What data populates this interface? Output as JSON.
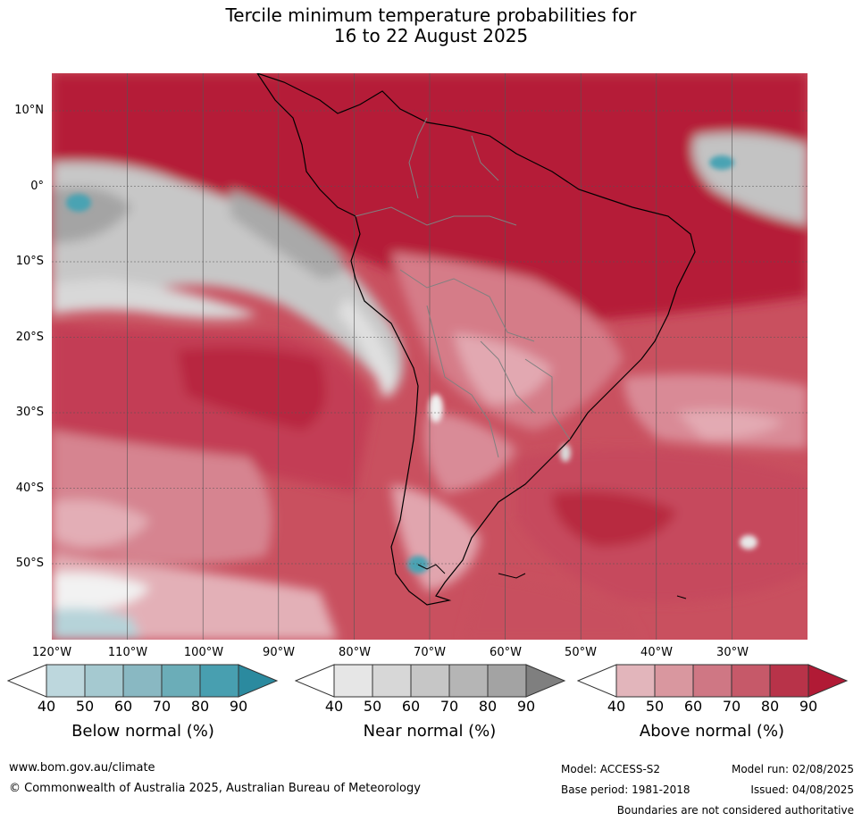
{
  "title_line1": "Tercile minimum temperature probabilities for",
  "title_line2": "16 to 22 August 2025",
  "map": {
    "region": "South America",
    "lat_labels": [
      "10°N",
      "0°",
      "10°S",
      "20°S",
      "30°S",
      "40°S",
      "50°S"
    ],
    "lon_labels": [
      "120°W",
      "110°W",
      "100°W",
      "90°W",
      "80°W",
      "70°W",
      "60°W",
      "50°W",
      "40°W",
      "30°W"
    ],
    "lon_range": [
      -122,
      -22
    ],
    "lat_range": [
      -60,
      15
    ],
    "ocean_colors": [
      "#b51a38",
      "#c43e55",
      "#d67a88",
      "#e2a9b2",
      "#a6a6a6",
      "#d6d6d6",
      "#b2d2d8"
    ]
  },
  "legend": {
    "tick_labels": [
      "40",
      "50",
      "60",
      "70",
      "80",
      "90"
    ],
    "below": {
      "title": "Below normal (%)",
      "colors": [
        "#bdd7dd",
        "#a5c9d0",
        "#89b8c2",
        "#6badb8",
        "#489fb0",
        "#2b8a9f"
      ]
    },
    "near": {
      "title": "Near normal (%)",
      "colors": [
        "#e6e6e6",
        "#d7d7d7",
        "#c6c6c6",
        "#b5b5b5",
        "#a3a3a3",
        "#7f7f7f"
      ]
    },
    "above": {
      "title": "Above normal (%)",
      "colors": [
        "#e2b5bb",
        "#d9979f",
        "#cf7784",
        "#c65969",
        "#b83349",
        "#b11a35"
      ]
    }
  },
  "footer": {
    "website": "www.bom.gov.au/climate",
    "copyright": "© Commonwealth of Australia 2025, Australian Bureau of Meteorology",
    "model": "Model: ACCESS-S2",
    "model_run": "Model run: 02/08/2025",
    "base_period": "Base period: 1981-2018",
    "issued": "Issued: 04/08/2025",
    "disclaimer": "Boundaries are not considered authoritative"
  }
}
